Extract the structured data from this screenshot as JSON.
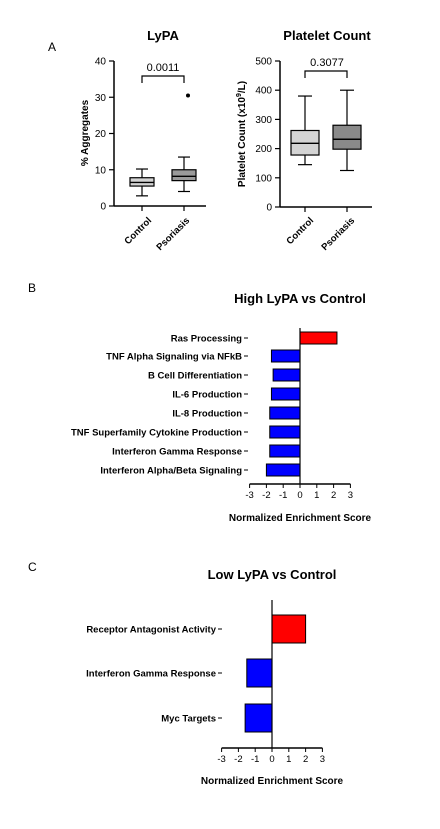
{
  "panels": {
    "a": "A",
    "b": "B",
    "c": "C"
  },
  "chart_data": [
    {
      "type": "box",
      "title": "LyPA",
      "ylabel": "% Aggregates",
      "ylim": [
        0,
        40
      ],
      "yticks": [
        0,
        10,
        20,
        30,
        40
      ],
      "categories": [
        "Control",
        "Psoriasis"
      ],
      "boxes": [
        {
          "name": "Control",
          "min": 2.8,
          "q1": 5.5,
          "median": 6.5,
          "q3": 7.8,
          "max": 10.2,
          "outliers": [],
          "color": "#d4d4d4"
        },
        {
          "name": "Psoriasis",
          "min": 4.0,
          "q1": 7.0,
          "median": 8.2,
          "q3": 10.0,
          "max": 13.5,
          "outliers": [
            30.5
          ],
          "color": "#9a9a9a"
        }
      ],
      "annotation": {
        "text": "0.0011"
      }
    },
    {
      "type": "box",
      "title": "Platelet Count",
      "ylabel": "Platelet Count (x10",
      "ylabel_sup": "9",
      "ylabel_end": "/L)",
      "ylim": [
        0,
        500
      ],
      "yticks": [
        0,
        100,
        200,
        300,
        400,
        500
      ],
      "categories": [
        "Control",
        "Psoriasis"
      ],
      "boxes": [
        {
          "name": "Control",
          "min": 145,
          "q1": 178,
          "median": 218,
          "q3": 262,
          "max": 380,
          "outliers": [],
          "color": "#d4d4d4"
        },
        {
          "name": "Psoriasis",
          "min": 125,
          "q1": 198,
          "median": 232,
          "q3": 280,
          "max": 400,
          "outliers": [],
          "color": "#8a8a8a"
        }
      ],
      "annotation": {
        "text": "0.3077"
      }
    },
    {
      "type": "bar",
      "orientation": "horizontal",
      "title": "High LyPA vs Control",
      "xlabel": "Normalized Enrichment Score",
      "xlim": [
        -3,
        3
      ],
      "xticks": [
        -3,
        -2,
        -1,
        0,
        1,
        2,
        3
      ],
      "categories": [
        "Ras Processing",
        "TNF Alpha Signaling via NFkB",
        "B Cell Differentiation",
        "IL-6 Production",
        "IL-8 Production",
        "TNF Superfamily Cytokine Production",
        "Interferon Gamma Response",
        "Interferon Alpha/Beta Signaling"
      ],
      "values": [
        2.2,
        -1.7,
        -1.6,
        -1.7,
        -1.8,
        -1.8,
        -1.8,
        -2.0
      ],
      "positive_color": "#ff0000",
      "negative_color": "#0000ff"
    },
    {
      "type": "bar",
      "orientation": "horizontal",
      "title": "Low LyPA vs Control",
      "xlabel": "Normalized Enrichment Score",
      "xlim": [
        -3,
        3
      ],
      "xticks": [
        -3,
        -2,
        -1,
        0,
        1,
        2,
        3
      ],
      "categories": [
        "Receptor Antagonist Activity",
        "Interferon Gamma Response",
        "Myc Targets"
      ],
      "values": [
        2.0,
        -1.5,
        -1.6
      ],
      "positive_color": "#ff0000",
      "negative_color": "#0000ff"
    }
  ]
}
